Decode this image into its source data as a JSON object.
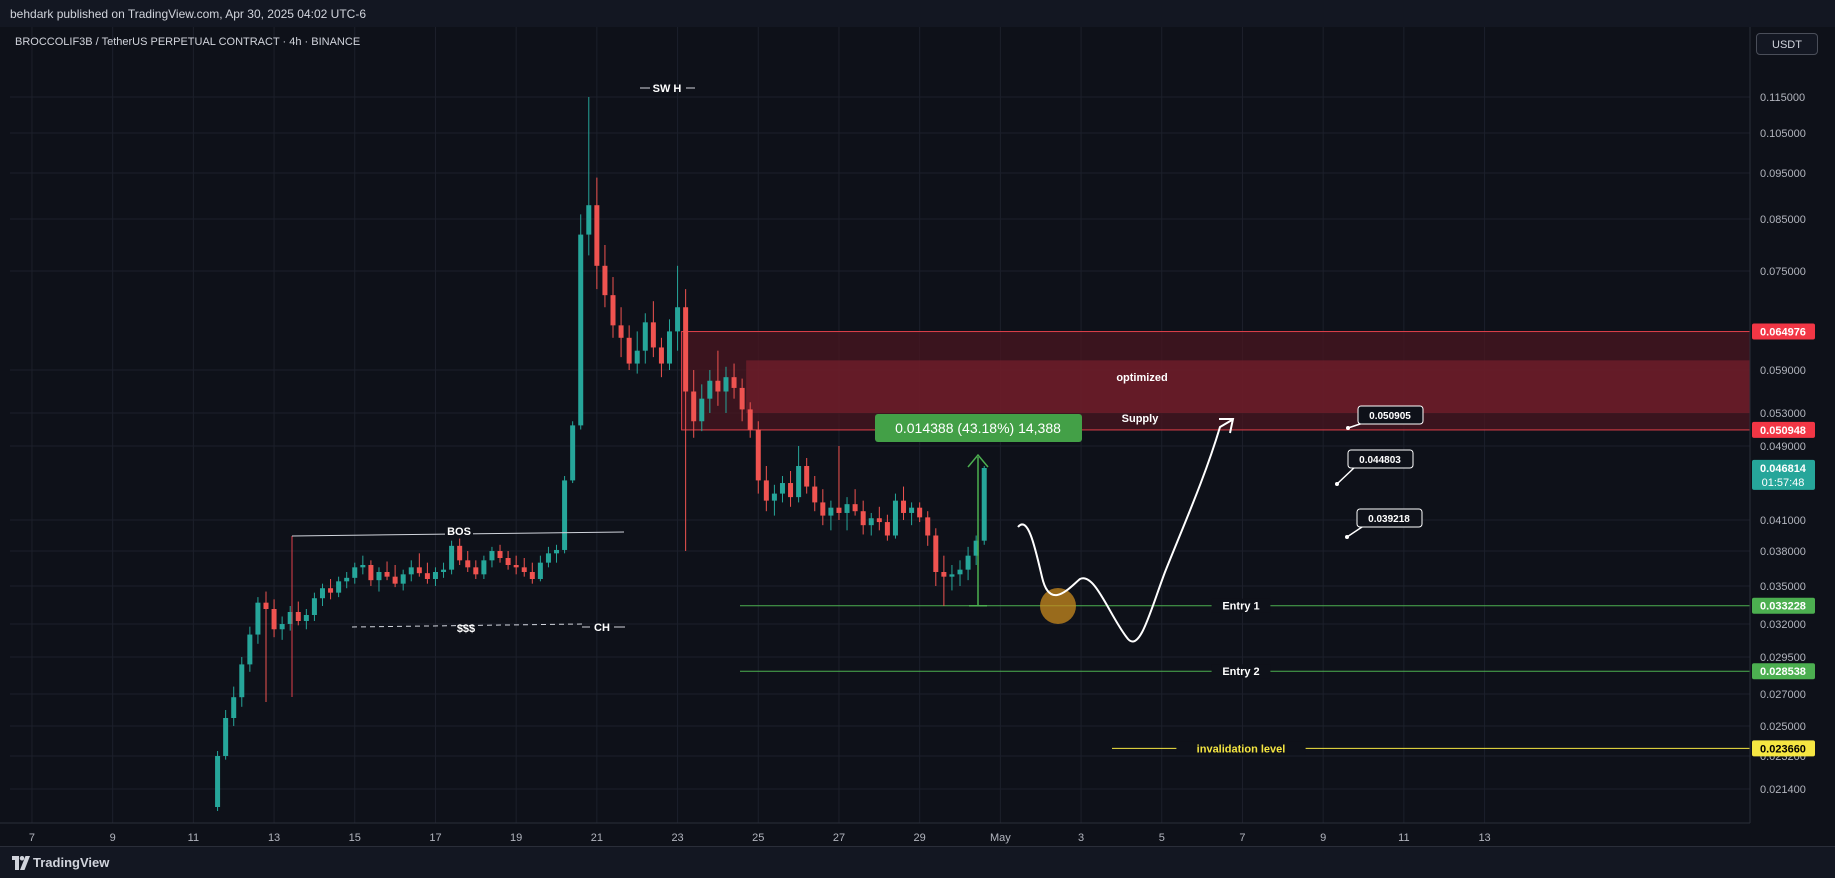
{
  "header": {
    "published_by": "behdark published on TradingView.com, Apr 30, 2025 04:02 UTC-6"
  },
  "symbol_title": "BROCCOLIF3B / TetherUS PERPETUAL CONTRACT · 4h · BINANCE",
  "currency_button": "USDT",
  "footer": {
    "brand": "TradingView",
    "logo_icon": "tradingview-logo-icon"
  },
  "colors": {
    "up": "#26a69a",
    "down": "#ef5350",
    "supply_zone": "#7b1f2c",
    "entry": "#4caf50",
    "invalidation": "#f5e642",
    "measure": "#4caf50",
    "circle": "#c8891e"
  },
  "chart_data": {
    "type": "candlestick",
    "timeframe": "4h",
    "y_ticks": [
      "0.115000",
      "0.105000",
      "0.095000",
      "0.085000",
      "0.075000",
      "0.059000",
      "0.053000",
      "0.049000",
      "0.041000",
      "0.038000",
      "0.035000",
      "0.032000",
      "0.029500",
      "0.027000",
      "0.025000",
      "0.023200",
      "0.021400"
    ],
    "x_ticks": [
      "7",
      "9",
      "11",
      "13",
      "15",
      "17",
      "19",
      "21",
      "23",
      "25",
      "27",
      "29",
      "May",
      "3",
      "5",
      "7",
      "9",
      "11",
      "13"
    ],
    "price_tags": [
      {
        "value": "0.064976",
        "color": "#f23645",
        "text_color": "#ffffff"
      },
      {
        "value": "0.050948",
        "color": "#f23645",
        "text_color": "#ffffff"
      },
      {
        "value": "0.046814",
        "sub": "01:57:48",
        "color": "#26a69a",
        "text_color": "#ffffff"
      },
      {
        "value": "0.033228",
        "color": "#4caf50",
        "text_color": "#ffffff"
      },
      {
        "value": "0.028538",
        "color": "#4caf50",
        "text_color": "#ffffff"
      },
      {
        "value": "0.023660",
        "color": "#f5e642",
        "text_color": "#000000"
      }
    ],
    "annotations": {
      "swh": "SW H",
      "bos": "BOS",
      "liquidity": "$$$",
      "ch": "CH",
      "zone_label_1": "optimized",
      "zone_label_2": "Supply",
      "entry1": "Entry 1",
      "entry2": "Entry 2",
      "invalidation": "invalidation level",
      "measure": "0.014388 (43.18%) 14,388",
      "targets": [
        "0.050905",
        "0.044803",
        "0.039218"
      ]
    },
    "zones": {
      "supply": {
        "top": 0.064976,
        "bottom": 0.050948
      },
      "optimized": {
        "top": 0.0605,
        "bottom": 0.053
      }
    },
    "levels": {
      "entry1": 0.033228,
      "entry2": 0.028538,
      "invalidation": 0.02366
    },
    "candles": [
      [
        11.6,
        0.0205,
        0.0235,
        0.0203,
        0.0232
      ],
      [
        11.8,
        0.0232,
        0.026,
        0.023,
        0.0255
      ],
      [
        12.0,
        0.0255,
        0.0275,
        0.025,
        0.0268
      ],
      [
        12.2,
        0.0268,
        0.0295,
        0.0262,
        0.029
      ],
      [
        12.4,
        0.029,
        0.0318,
        0.0285,
        0.0312
      ],
      [
        12.6,
        0.0312,
        0.034,
        0.0305,
        0.0335
      ],
      [
        12.8,
        0.0335,
        0.0345,
        0.0265,
        0.033
      ],
      [
        13.0,
        0.033,
        0.0338,
        0.031,
        0.0316
      ],
      [
        13.2,
        0.0316,
        0.0325,
        0.0308,
        0.032
      ],
      [
        13.4,
        0.032,
        0.0332,
        0.0315,
        0.0328
      ],
      [
        13.6,
        0.0328,
        0.0336,
        0.0319,
        0.0322
      ],
      [
        13.8,
        0.0322,
        0.033,
        0.0316,
        0.0326
      ],
      [
        14.0,
        0.0326,
        0.0344,
        0.0322,
        0.0339
      ],
      [
        14.2,
        0.0339,
        0.0352,
        0.0332,
        0.0348
      ],
      [
        14.4,
        0.0348,
        0.0356,
        0.0338,
        0.0344
      ],
      [
        14.6,
        0.0344,
        0.0358,
        0.034,
        0.0354
      ],
      [
        14.8,
        0.0354,
        0.0362,
        0.0348,
        0.0357
      ],
      [
        15.0,
        0.0357,
        0.037,
        0.0352,
        0.0366
      ],
      [
        15.2,
        0.0366,
        0.0376,
        0.036,
        0.0368
      ],
      [
        15.4,
        0.0368,
        0.0372,
        0.035,
        0.0355
      ],
      [
        15.6,
        0.0355,
        0.0366,
        0.0345,
        0.0362
      ],
      [
        15.8,
        0.0362,
        0.0371,
        0.0355,
        0.0358
      ],
      [
        16.0,
        0.0358,
        0.0368,
        0.0349,
        0.0352
      ],
      [
        16.2,
        0.0352,
        0.0364,
        0.0346,
        0.036
      ],
      [
        16.4,
        0.036,
        0.0372,
        0.0354,
        0.0366
      ],
      [
        16.6,
        0.0366,
        0.0378,
        0.0358,
        0.0361
      ],
      [
        16.8,
        0.0361,
        0.037,
        0.0352,
        0.0356
      ],
      [
        17.0,
        0.0356,
        0.0366,
        0.035,
        0.0362
      ],
      [
        17.2,
        0.0362,
        0.037,
        0.0357,
        0.0364
      ],
      [
        17.4,
        0.0364,
        0.039,
        0.036,
        0.0385
      ],
      [
        17.6,
        0.0385,
        0.0392,
        0.0368,
        0.0372
      ],
      [
        17.8,
        0.0372,
        0.038,
        0.0362,
        0.0366
      ],
      [
        18.0,
        0.0366,
        0.0372,
        0.0356,
        0.036
      ],
      [
        18.2,
        0.036,
        0.0376,
        0.0356,
        0.0372
      ],
      [
        18.4,
        0.0372,
        0.0384,
        0.0366,
        0.038
      ],
      [
        18.6,
        0.038,
        0.0386,
        0.037,
        0.0374
      ],
      [
        18.8,
        0.0374,
        0.038,
        0.0364,
        0.0368
      ],
      [
        19.0,
        0.0368,
        0.0376,
        0.036,
        0.0366
      ],
      [
        19.2,
        0.0366,
        0.0374,
        0.0358,
        0.0362
      ],
      [
        19.4,
        0.0362,
        0.037,
        0.0352,
        0.0356
      ],
      [
        19.6,
        0.0356,
        0.0376,
        0.0354,
        0.037
      ],
      [
        19.8,
        0.037,
        0.0384,
        0.0366,
        0.0378
      ],
      [
        20.0,
        0.0378,
        0.0386,
        0.037,
        0.0381
      ],
      [
        20.2,
        0.0381,
        0.046,
        0.0378,
        0.0455
      ],
      [
        20.4,
        0.0455,
        0.052,
        0.0452,
        0.0515
      ],
      [
        20.6,
        0.0515,
        0.086,
        0.051,
        0.082
      ],
      [
        20.8,
        0.082,
        0.115,
        0.078,
        0.088
      ],
      [
        21.0,
        0.088,
        0.094,
        0.072,
        0.076
      ],
      [
        21.2,
        0.076,
        0.08,
        0.069,
        0.071
      ],
      [
        21.4,
        0.071,
        0.074,
        0.064,
        0.066
      ],
      [
        21.6,
        0.066,
        0.069,
        0.061,
        0.064
      ],
      [
        21.8,
        0.064,
        0.066,
        0.059,
        0.06
      ],
      [
        22.0,
        0.06,
        0.065,
        0.0585,
        0.062
      ],
      [
        22.2,
        0.062,
        0.068,
        0.06,
        0.0665
      ],
      [
        22.4,
        0.0665,
        0.07,
        0.061,
        0.0625
      ],
      [
        22.6,
        0.0625,
        0.064,
        0.058,
        0.06
      ],
      [
        22.8,
        0.06,
        0.067,
        0.059,
        0.065
      ],
      [
        23.0,
        0.065,
        0.076,
        0.062,
        0.069
      ],
      [
        23.2,
        0.069,
        0.072,
        0.038,
        0.056
      ],
      [
        23.4,
        0.056,
        0.059,
        0.05,
        0.052
      ],
      [
        23.6,
        0.052,
        0.057,
        0.0508,
        0.055
      ],
      [
        23.8,
        0.055,
        0.059,
        0.053,
        0.0575
      ],
      [
        24.0,
        0.0575,
        0.062,
        0.054,
        0.056
      ],
      [
        24.2,
        0.056,
        0.0595,
        0.053,
        0.058
      ],
      [
        24.4,
        0.058,
        0.06,
        0.055,
        0.0565
      ],
      [
        24.6,
        0.0565,
        0.0578,
        0.052,
        0.0535
      ],
      [
        24.8,
        0.0535,
        0.0545,
        0.05,
        0.051
      ],
      [
        25.0,
        0.051,
        0.052,
        0.044,
        0.0455
      ],
      [
        25.2,
        0.0455,
        0.047,
        0.042,
        0.0432
      ],
      [
        25.4,
        0.0432,
        0.045,
        0.0415,
        0.044
      ],
      [
        25.6,
        0.044,
        0.046,
        0.043,
        0.0452
      ],
      [
        25.8,
        0.0452,
        0.0465,
        0.0425,
        0.0436
      ],
      [
        26.0,
        0.0436,
        0.049,
        0.043,
        0.047
      ],
      [
        26.2,
        0.047,
        0.0478,
        0.044,
        0.0448
      ],
      [
        26.4,
        0.0448,
        0.046,
        0.042,
        0.043
      ],
      [
        26.6,
        0.043,
        0.0445,
        0.0405,
        0.0415
      ],
      [
        26.8,
        0.0415,
        0.0432,
        0.04,
        0.0424
      ],
      [
        27.0,
        0.0424,
        0.049,
        0.041,
        0.0418
      ],
      [
        27.2,
        0.0418,
        0.0436,
        0.04,
        0.0428
      ],
      [
        27.4,
        0.0428,
        0.0445,
        0.0415,
        0.042
      ],
      [
        27.6,
        0.042,
        0.0432,
        0.0396,
        0.0405
      ],
      [
        27.8,
        0.0405,
        0.0418,
        0.0395,
        0.0412
      ],
      [
        28.0,
        0.0412,
        0.0425,
        0.04,
        0.0408
      ],
      [
        28.2,
        0.0408,
        0.0416,
        0.039,
        0.0395
      ],
      [
        28.4,
        0.0395,
        0.044,
        0.0392,
        0.0432
      ],
      [
        28.6,
        0.0432,
        0.0448,
        0.041,
        0.0418
      ],
      [
        28.8,
        0.0418,
        0.043,
        0.0405,
        0.0424
      ],
      [
        29.0,
        0.0424,
        0.043,
        0.0408,
        0.0413
      ],
      [
        29.2,
        0.0413,
        0.042,
        0.0385,
        0.0395
      ],
      [
        29.4,
        0.0395,
        0.0402,
        0.035,
        0.0362
      ],
      [
        29.6,
        0.0362,
        0.0376,
        0.0332,
        0.0358
      ],
      [
        29.8,
        0.0358,
        0.0368,
        0.0346,
        0.036
      ],
      [
        30.0,
        0.036,
        0.0372,
        0.035,
        0.0364
      ],
      [
        30.2,
        0.0364,
        0.0384,
        0.0355,
        0.0376
      ],
      [
        30.4,
        0.0376,
        0.0395,
        0.0368,
        0.039
      ],
      [
        30.6,
        0.039,
        0.047,
        0.0386,
        0.0468
      ]
    ]
  }
}
